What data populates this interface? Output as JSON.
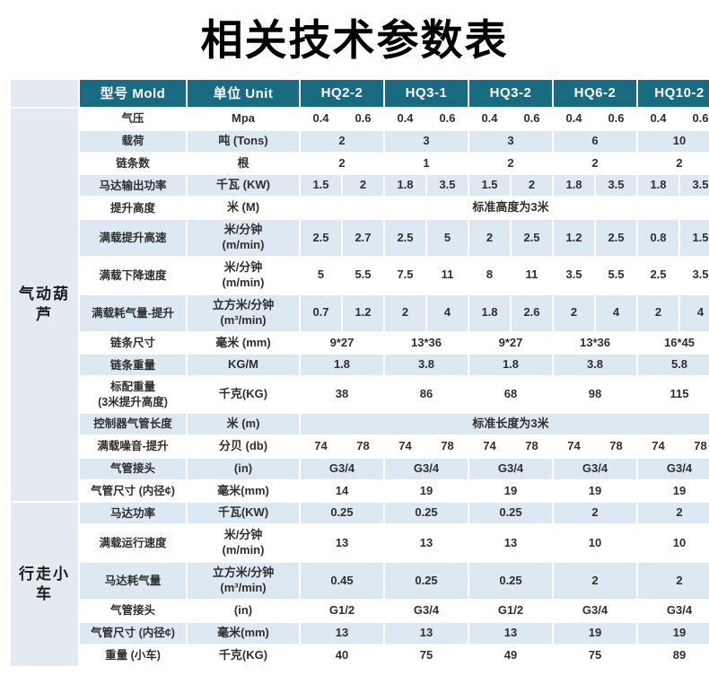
{
  "title": "相关技术参数表",
  "colors": {
    "header_bg": "#186b80",
    "header_text": "#ffffff",
    "stripe_bg": "#dce9f2",
    "group_bg": "#e3eaf1",
    "body_text": "#2f2f2f"
  },
  "table": {
    "header": {
      "model_label": "型号 Mold",
      "unit_label": "单位 Unit",
      "models": [
        "HQ2-2",
        "HQ3-1",
        "HQ3-2",
        "HQ6-2",
        "HQ10-2"
      ]
    },
    "groups": [
      {
        "label": "气动葫芦",
        "rows": [
          {
            "label": "气压",
            "unit": "Mpa",
            "type": "pairs",
            "values": [
              [
                "0.4",
                "0.6"
              ],
              [
                "0.4",
                "0.6"
              ],
              [
                "0.4",
                "0.6"
              ],
              [
                "0.4",
                "0.6"
              ],
              [
                "0.4",
                "0.6"
              ]
            ]
          },
          {
            "label": "载荷",
            "unit": "吨 (Tons)",
            "type": "singles",
            "values": [
              "2",
              "3",
              "3",
              "6",
              "10"
            ]
          },
          {
            "label": "链条数",
            "unit": "根",
            "type": "singles",
            "values": [
              "2",
              "1",
              "2",
              "2",
              "2"
            ]
          },
          {
            "label": "马达输出功率",
            "unit": "千瓦 (KW)",
            "type": "pairs",
            "values": [
              [
                "1.5",
                "2"
              ],
              [
                "1.8",
                "3.5"
              ],
              [
                "1.5",
                "2"
              ],
              [
                "1.8",
                "3.5"
              ],
              [
                "1.8",
                "3.5"
              ]
            ]
          },
          {
            "label": "提升高度",
            "unit": "米 (M)",
            "type": "span",
            "span_text": "标准高度为3米"
          },
          {
            "label": "满载提升高速",
            "unit": "米/分钟\n(m/min)",
            "type": "pairs",
            "values": [
              [
                "2.5",
                "2.7"
              ],
              [
                "2.5",
                "5"
              ],
              [
                "2",
                "2.5"
              ],
              [
                "1.2",
                "2.5"
              ],
              [
                "0.8",
                "1.5"
              ]
            ]
          },
          {
            "label": "满载下降速度",
            "unit": "米/分钟\n(m/min)",
            "type": "pairs",
            "values": [
              [
                "5",
                "5.5"
              ],
              [
                "7.5",
                "11"
              ],
              [
                "8",
                "11"
              ],
              [
                "3.5",
                "5.5"
              ],
              [
                "2.5",
                "3.5"
              ]
            ]
          },
          {
            "label": "满载耗气量-提升",
            "unit": "立方米/分钟\n(m³/min)",
            "type": "pairs",
            "values": [
              [
                "0.7",
                "1.2"
              ],
              [
                "2",
                "4"
              ],
              [
                "1.8",
                "2.6"
              ],
              [
                "2",
                "4"
              ],
              [
                "2",
                "4"
              ]
            ]
          },
          {
            "label": "链条尺寸",
            "unit": "毫米 (mm)",
            "type": "singles",
            "values": [
              "9*27",
              "13*36",
              "9*27",
              "13*36",
              "16*45"
            ]
          },
          {
            "label": "链条重量",
            "unit": "KG/M",
            "type": "singles",
            "values": [
              "1.8",
              "3.8",
              "1.8",
              "3.8",
              "5.8"
            ]
          },
          {
            "label": "标配重量\n(3米提升高度)",
            "unit": "千克(KG)",
            "type": "singles",
            "values": [
              "38",
              "86",
              "68",
              "98",
              "115"
            ]
          },
          {
            "label": "控制器气管长度",
            "unit": "米 (m)",
            "type": "span",
            "span_text": "标准长度为3米"
          },
          {
            "label": "满载噪音-提升",
            "unit": "分贝 (db)",
            "type": "pairs",
            "values": [
              [
                "74",
                "78"
              ],
              [
                "74",
                "78"
              ],
              [
                "74",
                "78"
              ],
              [
                "74",
                "78"
              ],
              [
                "74",
                "78"
              ]
            ]
          },
          {
            "label": "气管接头",
            "unit": "(in)",
            "type": "singles",
            "values": [
              "G3/4",
              "G3/4",
              "G3/4",
              "G3/4",
              "G3/4"
            ]
          },
          {
            "label": "气管尺寸 (内径¢)",
            "unit": "毫米(mm)",
            "type": "singles",
            "values": [
              "14",
              "19",
              "19",
              "19",
              "19"
            ]
          }
        ]
      },
      {
        "label": "行走小车",
        "rows": [
          {
            "label": "马达功率",
            "unit": "千瓦(KW)",
            "type": "singles",
            "values": [
              "0.25",
              "0.25",
              "0.25",
              "2",
              "2"
            ]
          },
          {
            "label": "满载运行速度",
            "unit": "米/分钟\n(m/min)",
            "type": "singles",
            "values": [
              "13",
              "13",
              "13",
              "10",
              "10"
            ]
          },
          {
            "label": "马达耗气量",
            "unit": "立方米/分钟\n(m³/min)",
            "type": "singles",
            "values": [
              "0.45",
              "0.25",
              "0.25",
              "2",
              "2"
            ]
          },
          {
            "label": "气管接头",
            "unit": "(in)",
            "type": "singles",
            "values": [
              "G1/2",
              "G3/4",
              "G1/2",
              "G3/4",
              "G3/4"
            ]
          },
          {
            "label": "气管尺寸 (内径¢)",
            "unit": "毫米(mm)",
            "type": "singles",
            "values": [
              "13",
              "13",
              "13",
              "19",
              "19"
            ]
          },
          {
            "label": "重量 (小车)",
            "unit": "千克(KG)",
            "type": "singles",
            "values": [
              "40",
              "75",
              "49",
              "75",
              "89"
            ]
          }
        ]
      }
    ]
  }
}
